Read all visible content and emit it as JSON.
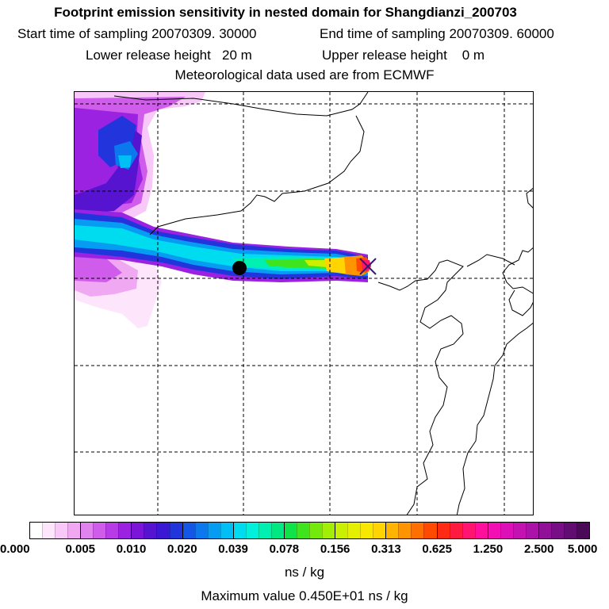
{
  "header": {
    "title": "Footprint emission sensitivity in nested domain for Shangdianzi_200703",
    "start_label": "Start time of sampling 20070309. 30000",
    "end_label": "End time of sampling 20070309. 60000",
    "lower_label": "Lower release height   20 m",
    "upper_label": "Upper release height    0 m",
    "met_label": "Meteorological data used are from ECMWF"
  },
  "colorbar": {
    "ticks": [
      "0.000",
      "0.005",
      "0.010",
      "0.020",
      "0.039",
      "0.078",
      "0.156",
      "0.313",
      "0.625",
      "1.250",
      "2.500",
      "5.000"
    ],
    "colors": [
      "#ffffff",
      "#fde6fc",
      "#f8c8f8",
      "#f0a8f2",
      "#e083ee",
      "#cf5cea",
      "#b73be6",
      "#9b22e0",
      "#7b16d8",
      "#5614d0",
      "#3a18d4",
      "#2235dc",
      "#1456e6",
      "#0b78ee",
      "#069cf2",
      "#00bff6",
      "#00dcef",
      "#00f0dc",
      "#00f0b2",
      "#00e882",
      "#10e24a",
      "#40e41e",
      "#74ea0c",
      "#a2ee06",
      "#c8f000",
      "#e4f000",
      "#f8e800",
      "#ffd400",
      "#ffb400",
      "#ff9300",
      "#ff7000",
      "#ff4a00",
      "#ff2a14",
      "#ff1a40",
      "#ff1470",
      "#ff109c",
      "#f210b4",
      "#dc10b6",
      "#c412b0",
      "#aa12a8",
      "#901098",
      "#780e86",
      "#600c70",
      "#4a0a58"
    ],
    "units": "ns / kg",
    "max_label": "Maximum value  0.450E+01 ns / kg"
  }
}
